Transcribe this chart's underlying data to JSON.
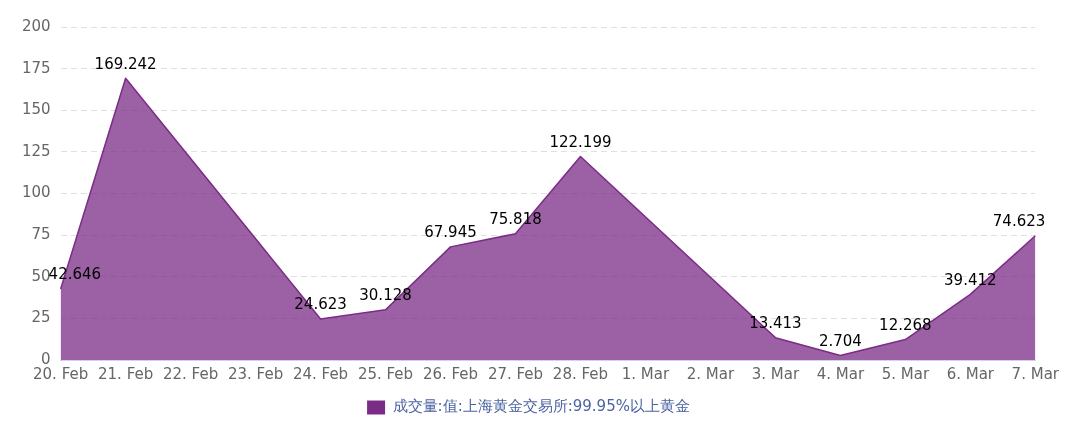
{
  "chart_data": {
    "type": "area",
    "categories": [
      "20. Feb",
      "21. Feb",
      "22. Feb",
      "23. Feb",
      "24. Feb",
      "25. Feb",
      "26. Feb",
      "27. Feb",
      "28. Feb",
      "1. Mar",
      "2. Mar",
      "3. Mar",
      "4. Mar",
      "5. Mar",
      "6. Mar",
      "7. Mar"
    ],
    "series": [
      {
        "name": "成交量:值:上海黄金交易所:99.95%以上黄金",
        "color": "#7b2c86",
        "values": [
          42.646,
          169.242,
          null,
          null,
          24.623,
          30.128,
          67.945,
          75.818,
          122.199,
          null,
          null,
          13.413,
          2.704,
          12.268,
          39.412,
          74.623
        ]
      }
    ],
    "ylim": [
      0,
      200
    ],
    "yticks": [
      0,
      25,
      50,
      75,
      100,
      125,
      150,
      175,
      200
    ],
    "grid": "y",
    "legend": "bottom",
    "data_labels": true,
    "marker": "none"
  }
}
